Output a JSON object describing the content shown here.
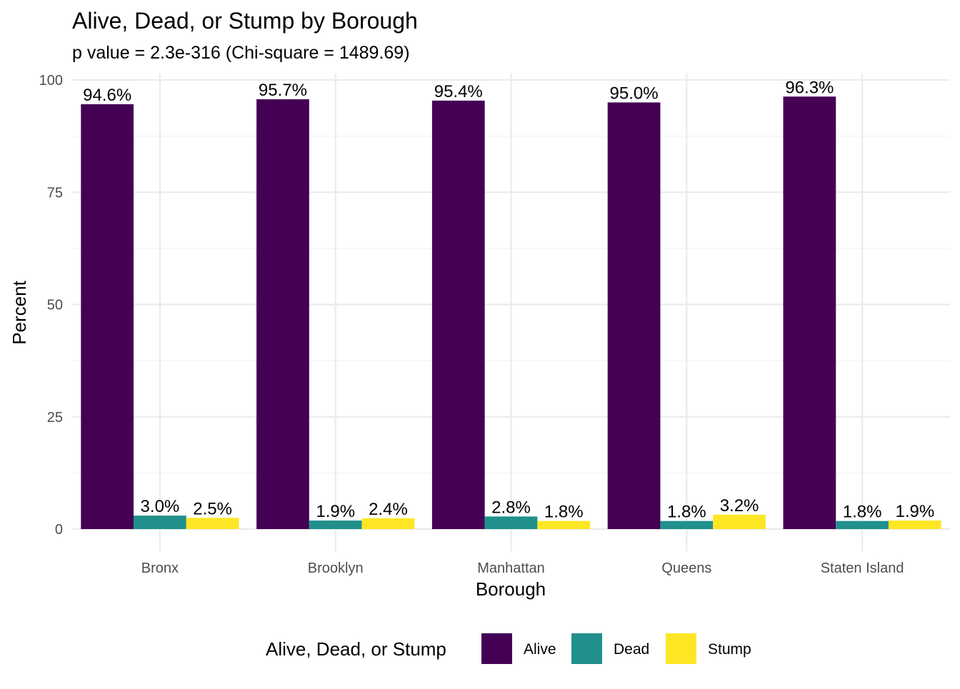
{
  "chart_data": {
    "type": "bar",
    "title": "Alive, Dead, or Stump by Borough",
    "subtitle": "p value = 2.3e-316 (Chi-square = 1489.69)",
    "xlabel": "Borough",
    "ylabel": "Percent",
    "categories": [
      "Bronx",
      "Brooklyn",
      "Manhattan",
      "Queens",
      "Staten Island"
    ],
    "series": [
      {
        "name": "Alive",
        "color": "#440154",
        "values": [
          94.6,
          95.7,
          95.4,
          95.0,
          96.3
        ],
        "labels": [
          "94.6%",
          "95.7%",
          "95.4%",
          "95.0%",
          "96.3%"
        ]
      },
      {
        "name": "Dead",
        "color": "#21908C",
        "values": [
          3.0,
          1.9,
          2.8,
          1.8,
          1.8
        ],
        "labels": [
          "3.0%",
          "1.9%",
          "2.8%",
          "1.8%",
          "1.8%"
        ]
      },
      {
        "name": "Stump",
        "color": "#FDE725",
        "values": [
          2.5,
          2.4,
          1.8,
          3.2,
          1.9
        ],
        "labels": [
          "2.5%",
          "2.4%",
          "1.8%",
          "3.2%",
          "1.9%"
        ]
      }
    ],
    "ylim": [
      0,
      100
    ],
    "yticks": [
      0,
      25,
      50,
      75,
      100
    ],
    "ytick_labels": [
      "0",
      "25",
      "50",
      "75",
      "100"
    ],
    "grid": true,
    "legend": {
      "title": "Alive, Dead, or Stump",
      "position": "bottom"
    }
  }
}
